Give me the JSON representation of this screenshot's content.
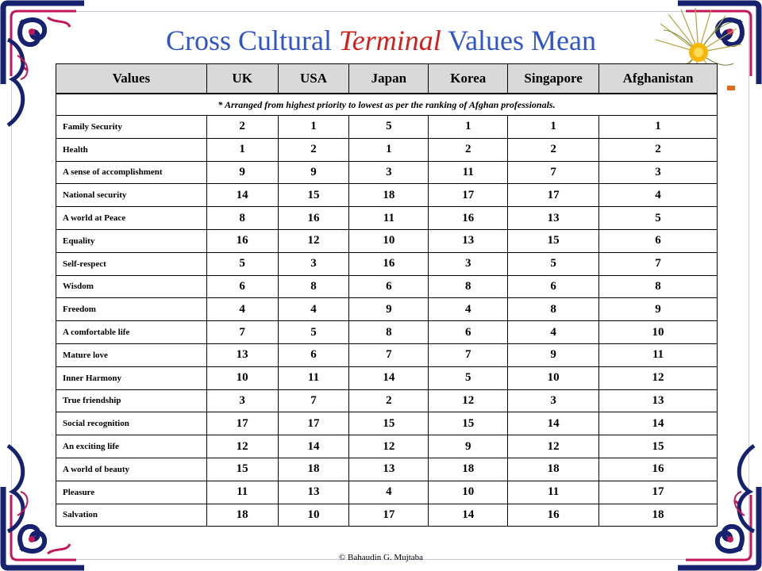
{
  "slide": {
    "title_prefix": "Cross Cultural ",
    "title_emphasis": "Terminal",
    "title_suffix": " Values Mean",
    "footer": "© Bahaudin G. Mujtaba"
  },
  "colors": {
    "title": "#2f55c8",
    "title_emphasis": "#d4201d",
    "header_bg": "#d9d9d9",
    "ornament_navy": "#16226e",
    "ornament_pink": "#c2185b"
  },
  "table": {
    "headers": [
      "Values",
      "UK",
      "USA",
      "Japan",
      "Korea",
      "Singapore",
      "Afghanistan"
    ],
    "note": "* Arranged from highest priority to lowest as per the ranking of Afghan professionals.",
    "rows": [
      {
        "value": "Family Security",
        "scores": [
          "2",
          "1",
          "5",
          "1",
          "1",
          "1"
        ]
      },
      {
        "value": "Health",
        "scores": [
          "1",
          "2",
          "1",
          "2",
          "2",
          "2"
        ]
      },
      {
        "value": "A sense of accomplishment",
        "scores": [
          "9",
          "9",
          "3",
          "11",
          "7",
          "3"
        ]
      },
      {
        "value": "National security",
        "scores": [
          "14",
          "15",
          "18",
          "17",
          "17",
          "4"
        ]
      },
      {
        "value": "A world at Peace",
        "scores": [
          "8",
          "16",
          "11",
          "16",
          "13",
          "5"
        ]
      },
      {
        "value": "Equality",
        "scores": [
          "16",
          "12",
          "10",
          "13",
          "15",
          "6"
        ]
      },
      {
        "value": "Self-respect",
        "scores": [
          "5",
          "3",
          "16",
          "3",
          "5",
          "7"
        ]
      },
      {
        "value": "Wisdom",
        "scores": [
          "6",
          "8",
          "6",
          "8",
          "6",
          "8"
        ]
      },
      {
        "value": "Freedom",
        "scores": [
          "4",
          "4",
          "9",
          "4",
          "8",
          "9"
        ]
      },
      {
        "value": "A comfortable life",
        "scores": [
          "7",
          "5",
          "8",
          "6",
          "4",
          "10"
        ]
      },
      {
        "value": "Mature love",
        "scores": [
          "13",
          "6",
          "7",
          "7",
          "9",
          "11"
        ]
      },
      {
        "value": "Inner Harmony",
        "scores": [
          "10",
          "11",
          "14",
          "5",
          "10",
          "12"
        ]
      },
      {
        "value": "True friendship",
        "scores": [
          "3",
          "7",
          "2",
          "12",
          "3",
          "13"
        ]
      },
      {
        "value": "Social recognition",
        "scores": [
          "17",
          "17",
          "15",
          "15",
          "14",
          "14"
        ]
      },
      {
        "value": "An exciting life",
        "scores": [
          "12",
          "14",
          "12",
          "9",
          "12",
          "15"
        ]
      },
      {
        "value": "A world of beauty",
        "scores": [
          "15",
          "18",
          "13",
          "18",
          "18",
          "16"
        ]
      },
      {
        "value": "Pleasure",
        "scores": [
          "11",
          "13",
          "4",
          "10",
          "11",
          "17"
        ]
      },
      {
        "value": "Salvation",
        "scores": [
          "18",
          "10",
          "17",
          "14",
          "16",
          "18"
        ]
      }
    ]
  },
  "icons": {
    "corner": "ornamental-scroll-icon",
    "top_right": "fan-flower-icon"
  }
}
